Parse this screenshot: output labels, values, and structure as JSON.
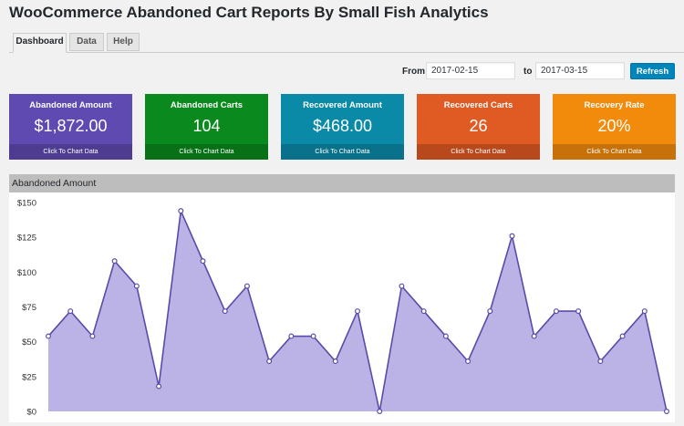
{
  "page": {
    "title": "WooCommerce Abandoned Cart Reports By Small Fish Analytics"
  },
  "tabs": [
    {
      "label": "Dashboard",
      "active": true
    },
    {
      "label": "Data",
      "active": false
    },
    {
      "label": "Help",
      "active": false
    }
  ],
  "filter": {
    "from_label": "From",
    "from_value": "2017-02-15",
    "to_label": "to",
    "to_value": "2017-03-15",
    "refresh_label": "Refresh"
  },
  "cards": [
    {
      "title": "Abandoned Amount",
      "value": "$1,872.00",
      "footer": "Click To Chart Data",
      "color": "#5e4ab0"
    },
    {
      "title": "Abandoned Carts",
      "value": "104",
      "footer": "Click To Chart Data",
      "color": "#0a8a1e"
    },
    {
      "title": "Recovered Amount",
      "value": "$468.00",
      "footer": "Click To Chart Data",
      "color": "#0b8aa8"
    },
    {
      "title": "Recovered Carts",
      "value": "26",
      "footer": "Click To Chart Data",
      "color": "#e05a24"
    },
    {
      "title": "Recovery Rate",
      "value": "20%",
      "footer": "Click To Chart Data",
      "color": "#f28a0c"
    }
  ],
  "chart_data": {
    "type": "area",
    "title": "Abandoned Amount",
    "y_tick_labels": [
      "$0",
      "$25",
      "$50",
      "$75",
      "$100",
      "$125",
      "$150"
    ],
    "ylim": [
      0,
      150
    ],
    "values": [
      54,
      72,
      54,
      108,
      90,
      18,
      144,
      108,
      72,
      90,
      36,
      54,
      54,
      36,
      72,
      0,
      90,
      72,
      54,
      36,
      72,
      126,
      54,
      72,
      72,
      36,
      54,
      72,
      0
    ],
    "fill_color": "#bbb3e6",
    "line_color": "#5c4aa8",
    "grid": false
  }
}
